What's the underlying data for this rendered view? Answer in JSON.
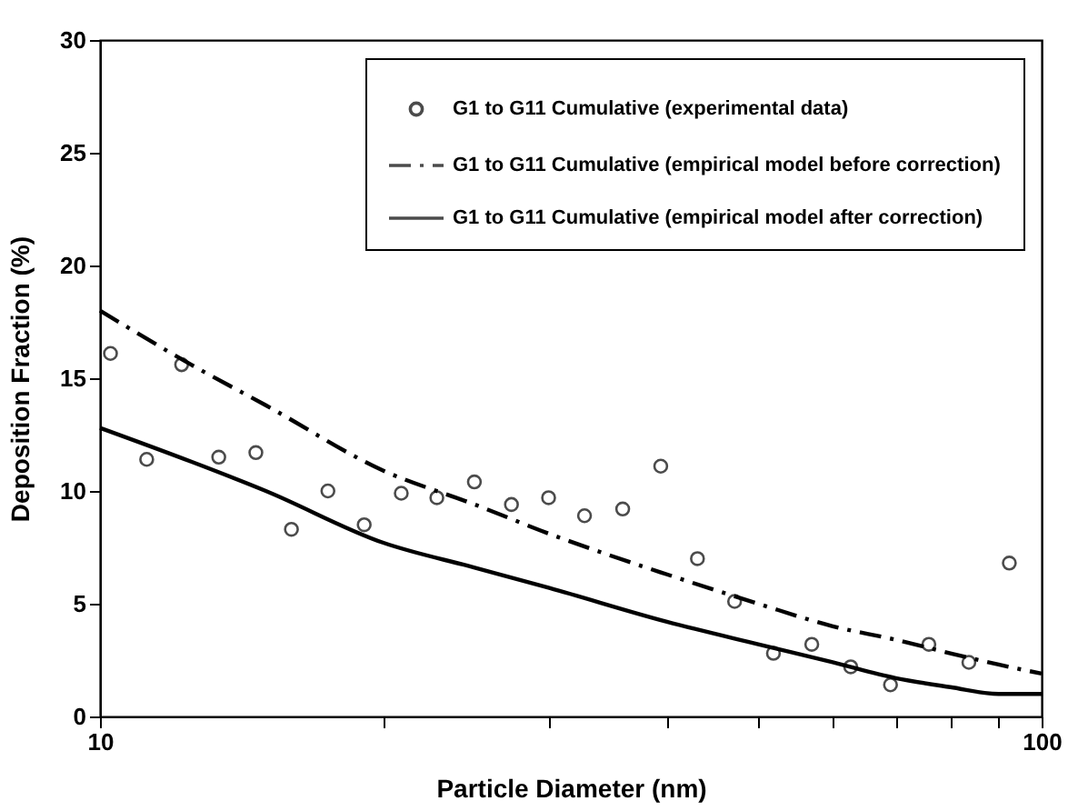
{
  "chart_data": {
    "type": "scatter",
    "xlabel": "Particle Diameter (nm)",
    "ylabel": "Deposition Fraction (%)",
    "log": "x",
    "xlim": [
      10,
      100
    ],
    "xticks": [
      10,
      {
        "value": 20,
        "label": null
      },
      {
        "value": 30,
        "label": null
      },
      {
        "value": 40,
        "label": null
      },
      {
        "value": 50,
        "label": null
      },
      {
        "value": 60,
        "label": null
      },
      {
        "value": 70,
        "label": null
      },
      {
        "value": 80,
        "label": null
      },
      {
        "value": 90,
        "label": null
      },
      100
    ],
    "ylim": [
      0,
      30
    ],
    "yticks": [
      0,
      5,
      10,
      15,
      20,
      25,
      30
    ],
    "grid": false,
    "legend": "top right",
    "series": [
      {
        "name": "G1 to G11 Cumulative (experimental data)",
        "marker": "circle",
        "color": "#000000",
        "x": [
          10.26,
          11.21,
          12.21,
          13.37,
          14.64,
          15.97,
          17.46,
          19.08,
          20.89,
          22.79,
          24.98,
          27.35,
          29.95,
          32.7,
          35.9,
          39.4,
          43.1,
          47.2,
          51.9,
          57.0,
          62.7,
          69.1,
          75.9,
          83.7,
          92.4
        ],
        "values": [
          16.1,
          11.4,
          15.6,
          11.5,
          11.7,
          8.3,
          10.0,
          8.5,
          9.9,
          9.7,
          10.4,
          9.4,
          9.7,
          8.9,
          9.2,
          11.1,
          7.0,
          5.1,
          2.8,
          3.2,
          2.2,
          1.4,
          3.2,
          2.4,
          6.8
        ]
      },
      {
        "name": "G1 to G11 Cumulative (empirical model before correction)",
        "type": "line",
        "line_style": "dashed",
        "color": "#000000",
        "x": [
          10,
          12.5,
          15,
          20,
          25,
          30,
          40,
          50,
          60,
          70,
          80,
          90,
          100
        ],
        "values": [
          18.0,
          15.6,
          13.8,
          10.9,
          9.4,
          8.1,
          6.3,
          5.0,
          4.0,
          3.4,
          2.8,
          2.3,
          1.9
        ]
      },
      {
        "name": "G1 to G11 Cumulative (empirical model after correction)",
        "type": "line",
        "line_style": "solid",
        "color": "#000000",
        "x": [
          10,
          12.5,
          15,
          20,
          25,
          30,
          40,
          50,
          60,
          70,
          80,
          90,
          100
        ],
        "values": [
          12.8,
          11.3,
          10.0,
          7.7,
          6.6,
          5.7,
          4.2,
          3.2,
          2.4,
          1.7,
          1.3,
          1.0,
          1.0
        ]
      }
    ]
  }
}
